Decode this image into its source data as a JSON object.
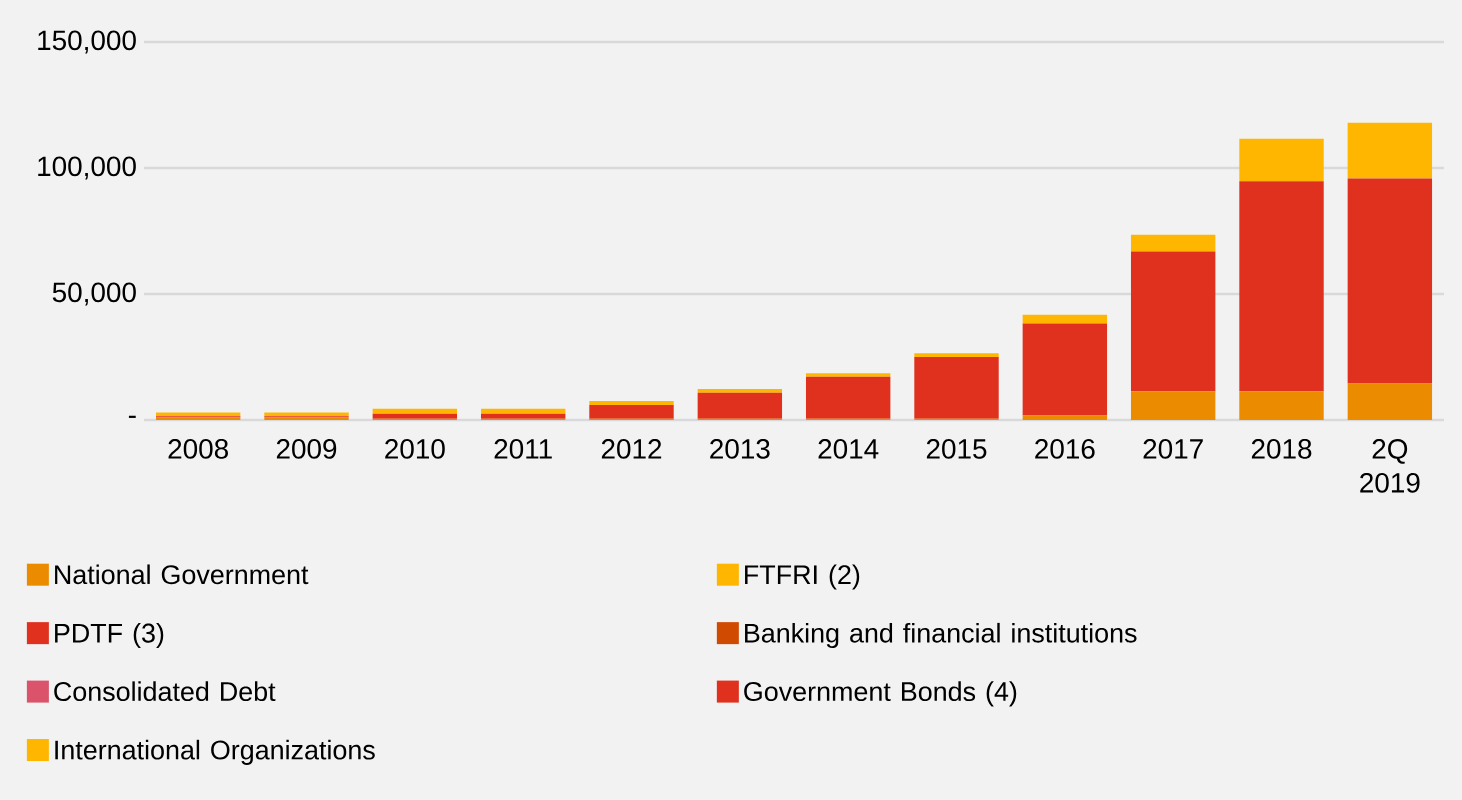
{
  "chart_data": {
    "type": "bar",
    "stacked": true,
    "categories": [
      "2008",
      "2009",
      "2010",
      "2011",
      "2012",
      "2013",
      "2014",
      "2015",
      "2016",
      "2017",
      "2018",
      "2Q 2019"
    ],
    "series": [
      {
        "name": "National Government",
        "color": "#eb8c00",
        "values": [
          1000,
          1000,
          500,
          500,
          500,
          500,
          500,
          500,
          1800,
          11400,
          11400,
          14500
        ]
      },
      {
        "name": "FTFRI (2)",
        "color": "#ffb600",
        "values": [
          null,
          null,
          null,
          null,
          null,
          null,
          null,
          null,
          null,
          null,
          null,
          null
        ]
      },
      {
        "name": "PDTF (3)",
        "color": "#e0301e",
        "values": [
          500,
          500,
          2000,
          2000,
          5500,
          10300,
          16700,
          24500,
          36500,
          55500,
          83300,
          81300
        ]
      },
      {
        "name": "Banking and financial institutions",
        "color": "#d04a02",
        "values": [
          null,
          null,
          null,
          null,
          null,
          null,
          null,
          null,
          null,
          null,
          null,
          null
        ]
      },
      {
        "name": "Consolidated Debt",
        "color": "#db536a",
        "values": [
          null,
          null,
          null,
          null,
          null,
          null,
          null,
          null,
          null,
          null,
          null,
          null
        ]
      },
      {
        "name": "Government Bonds (4)",
        "color": "#e0301e",
        "values": [
          null,
          null,
          null,
          null,
          null,
          null,
          null,
          null,
          null,
          null,
          null,
          null
        ]
      },
      {
        "name": "International Organizations",
        "color": "#ffb600",
        "values": [
          1500,
          1500,
          2000,
          2000,
          1500,
          1500,
          1400,
          1500,
          3500,
          6600,
          16900,
          22200
        ]
      }
    ],
    "ylim": [
      0,
      150000
    ],
    "yticks": [
      {
        "value": 0,
        "label": "-"
      },
      {
        "value": 50000,
        "label": "50,000"
      },
      {
        "value": 100000,
        "label": "100,000"
      },
      {
        "value": 150000,
        "label": "150,000"
      }
    ],
    "grid": "y",
    "legend": "bottom"
  }
}
